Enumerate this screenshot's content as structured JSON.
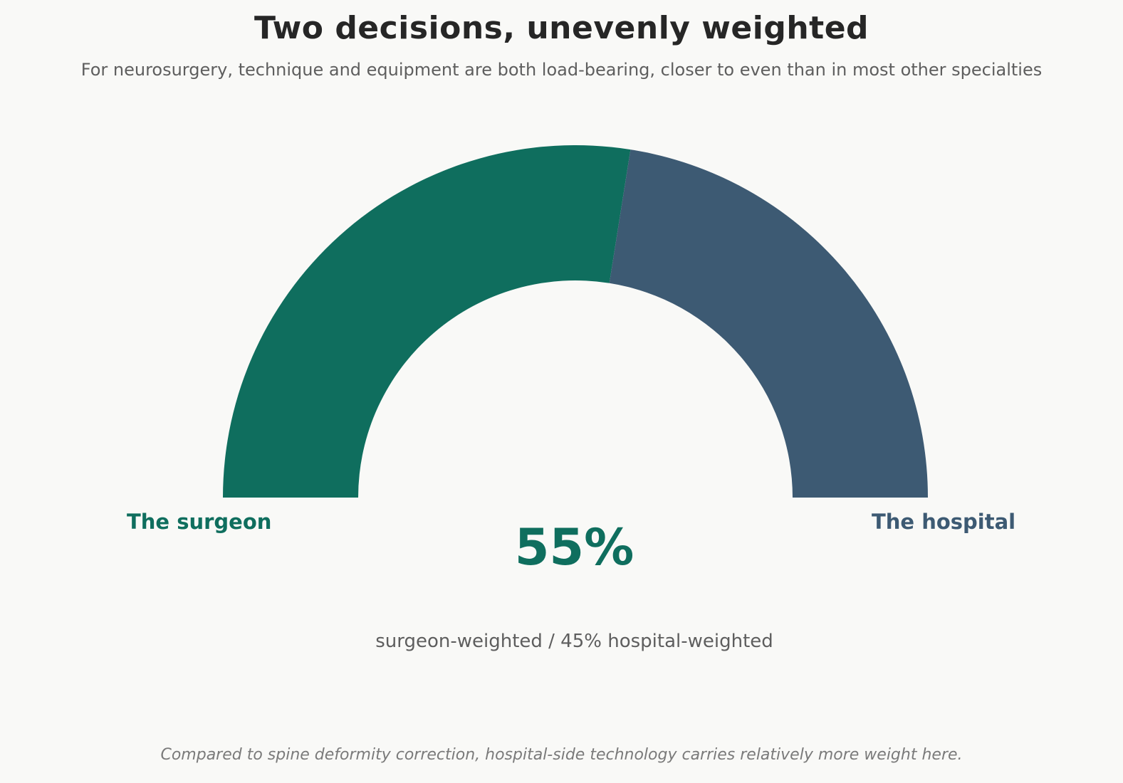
{
  "chart_data": {
    "type": "pie",
    "title": "Two decisions, unevenly weighted",
    "subtitle": "For neurosurgery, technique and equipment are both load-bearing, closer to even than in most other specialties",
    "series": [
      {
        "name": "The surgeon",
        "value": 55,
        "color": "#0f6e5e"
      },
      {
        "name": "The hospital",
        "value": 45,
        "color": "#3d5a73"
      }
    ],
    "center_value": "55%",
    "center_caption": "surgeon-weighted /  45% hospital-weighted",
    "footnote": "Compared to spine deformity correction, hospital-side technology carries relatively more weight here."
  }
}
